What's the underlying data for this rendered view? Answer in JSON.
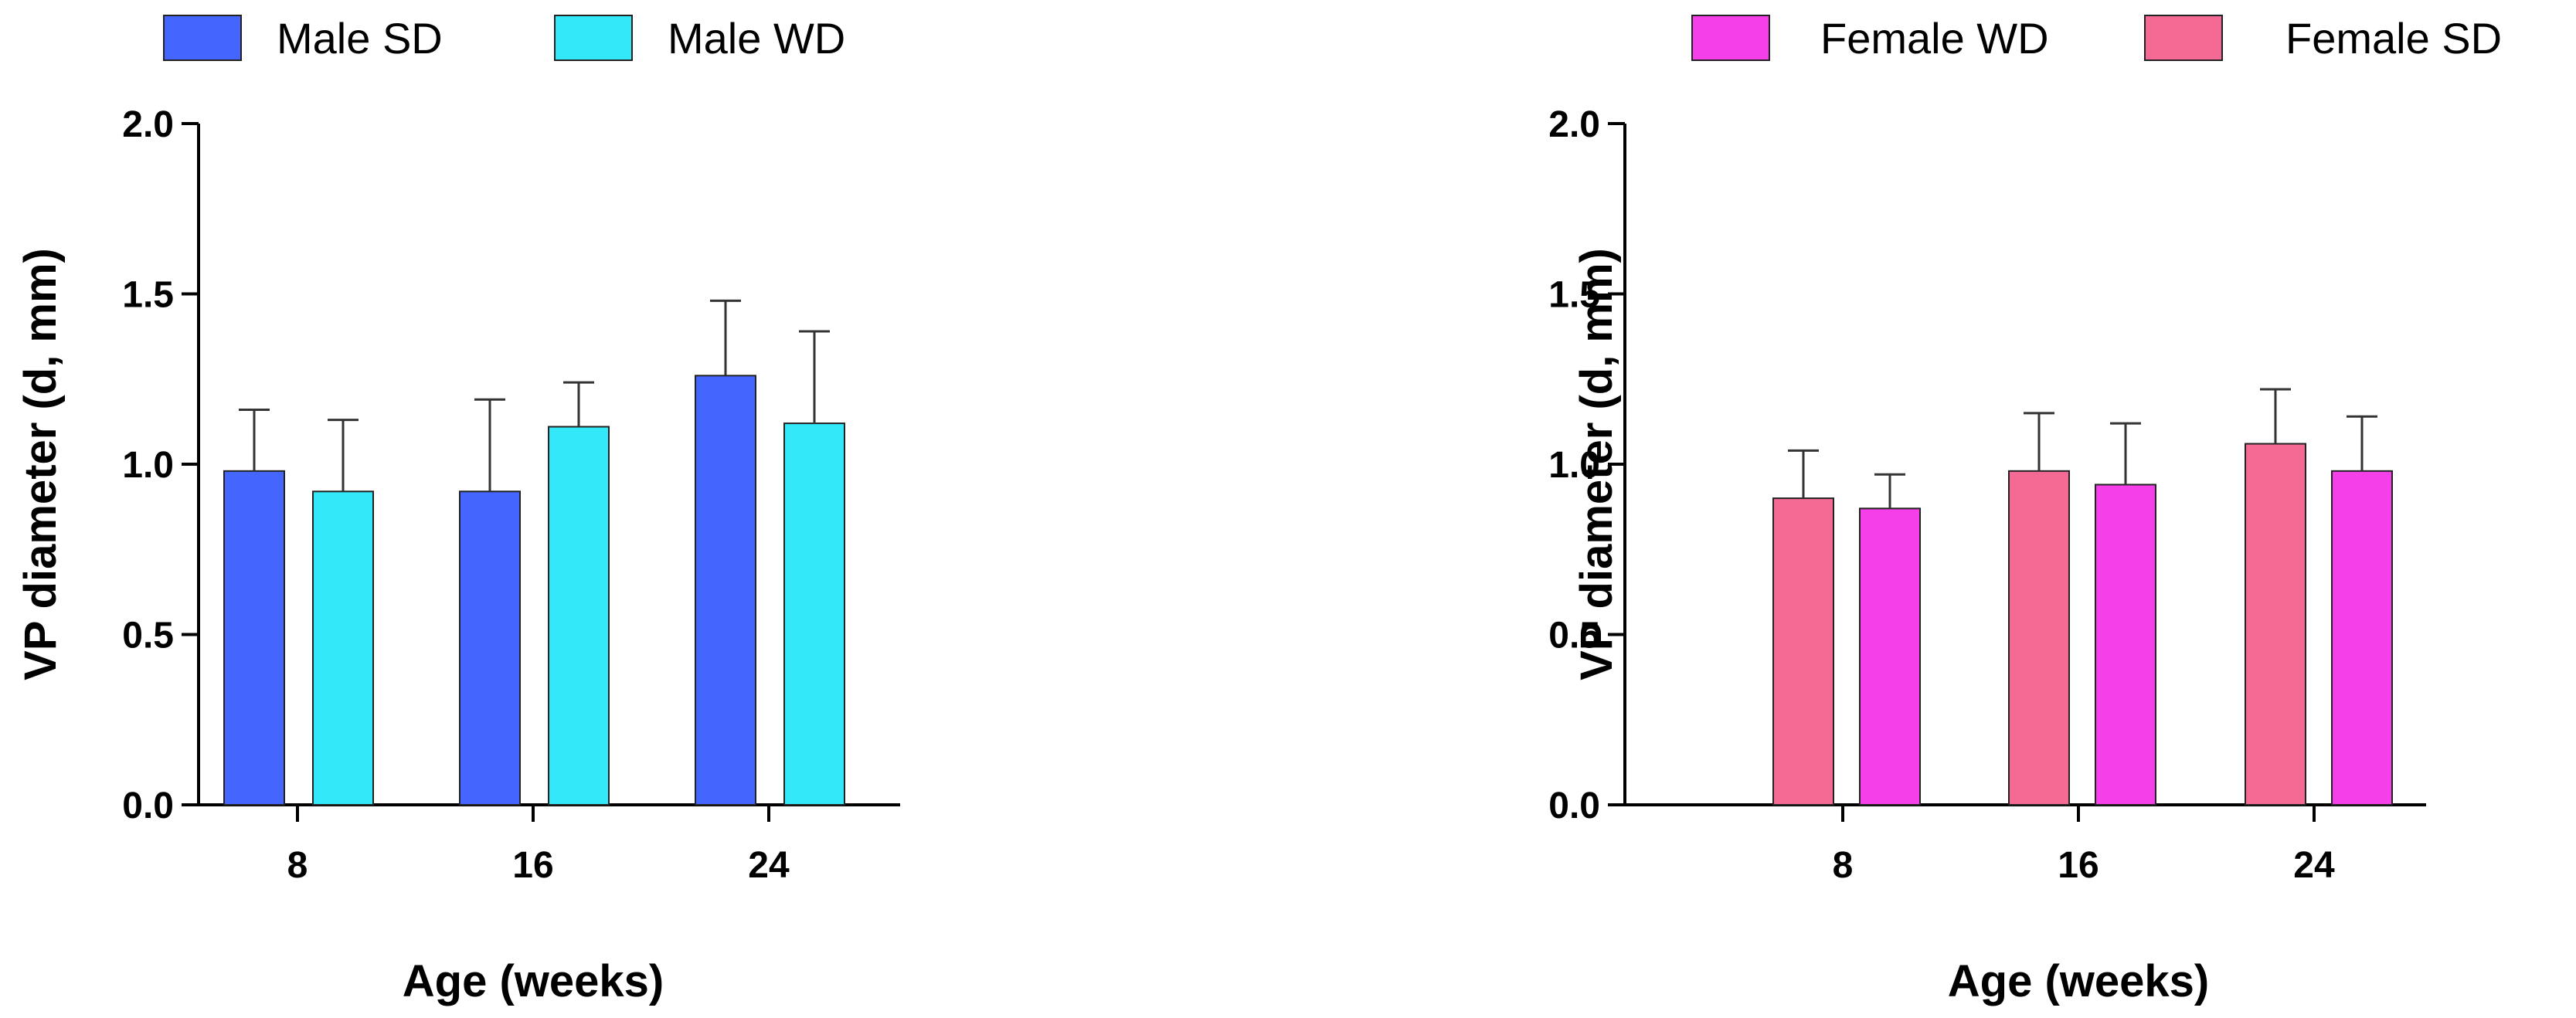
{
  "chart_data": [
    {
      "type": "bar",
      "title": "",
      "xlabel": "Age (weeks)",
      "ylabel": "VP diameter (d, mm)",
      "categories": [
        "8",
        "16",
        "24"
      ],
      "ylim": [
        0,
        2.0
      ],
      "yticks": [
        "0.0",
        "0.5",
        "1.0",
        "1.5",
        "2.0"
      ],
      "grid": false,
      "legend_position": "top-left",
      "series": [
        {
          "name": "Male SD",
          "color": "#4466ff",
          "values": [
            0.98,
            0.92,
            1.26
          ],
          "error": [
            0.18,
            0.27,
            0.22
          ]
        },
        {
          "name": "Male WD",
          "color": "#33e8f8",
          "values": [
            0.92,
            1.11,
            1.12
          ],
          "error": [
            0.21,
            0.13,
            0.27
          ]
        }
      ]
    },
    {
      "type": "bar",
      "title": "",
      "xlabel": "Age (weeks)",
      "ylabel": "VP diameter (d, mm)",
      "categories": [
        "8",
        "16",
        "24"
      ],
      "ylim": [
        0,
        2.0
      ],
      "yticks": [
        "0.0",
        "0.5",
        "1.0",
        "1.5",
        "2.0"
      ],
      "grid": false,
      "legend_position": "top-right",
      "legend_order": [
        1,
        0
      ],
      "series": [
        {
          "name": "Female SD",
          "color": "#f56a95",
          "values": [
            0.9,
            0.98,
            1.06
          ],
          "error": [
            0.14,
            0.17,
            0.16
          ]
        },
        {
          "name": "Female WD",
          "color": "#f53fe8",
          "values": [
            0.87,
            0.94,
            0.98
          ],
          "error": [
            0.1,
            0.18,
            0.16
          ]
        }
      ]
    }
  ]
}
